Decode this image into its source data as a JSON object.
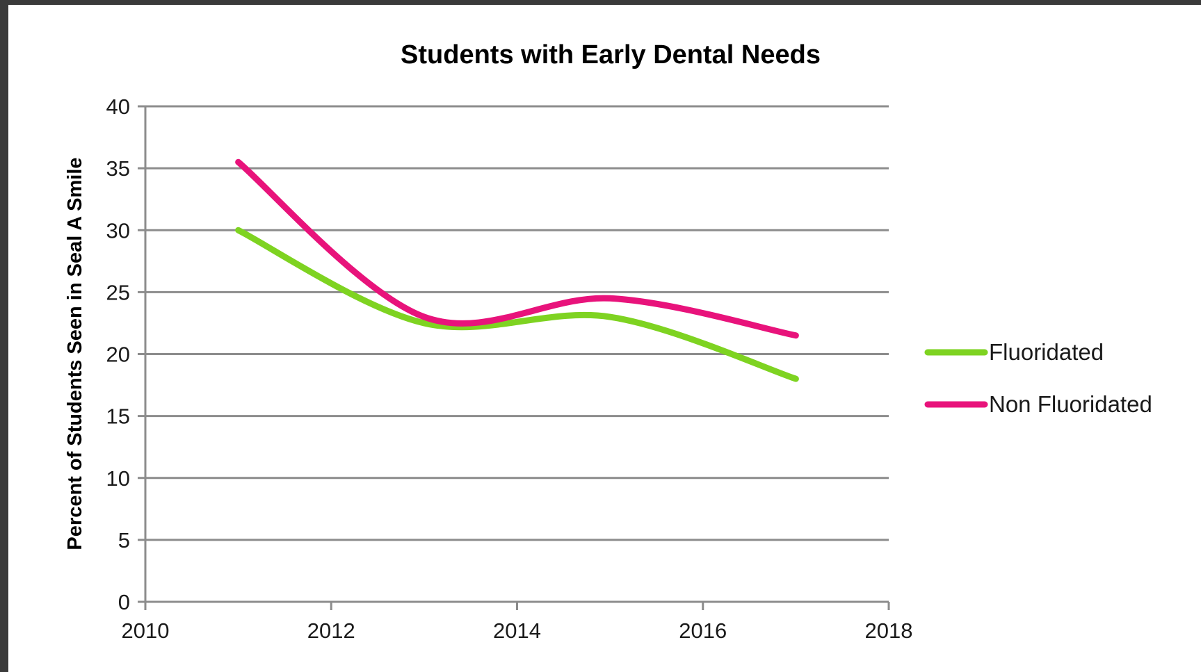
{
  "chart_data": {
    "type": "line",
    "title": "Students with Early Dental Needs",
    "xlabel": "",
    "ylabel": "Percent of Students Seen in Seal A Smile",
    "xlim": [
      2010,
      2018
    ],
    "ylim": [
      0,
      40
    ],
    "x_ticks": [
      2010,
      2012,
      2014,
      2016,
      2018
    ],
    "y_ticks": [
      0,
      5,
      10,
      15,
      20,
      25,
      30,
      35,
      40
    ],
    "grid": true,
    "smooth": true,
    "legend_position": "right",
    "series": [
      {
        "name": "Fluoridated",
        "color": "#7ED321",
        "x": [
          2011,
          2013,
          2015,
          2017
        ],
        "values": [
          30,
          22.5,
          23,
          18
        ]
      },
      {
        "name": "Non Fluoridated",
        "color": "#E8137B",
        "x": [
          2011,
          2013,
          2015,
          2017
        ],
        "values": [
          35.5,
          23,
          24.5,
          21.5
        ]
      }
    ]
  }
}
